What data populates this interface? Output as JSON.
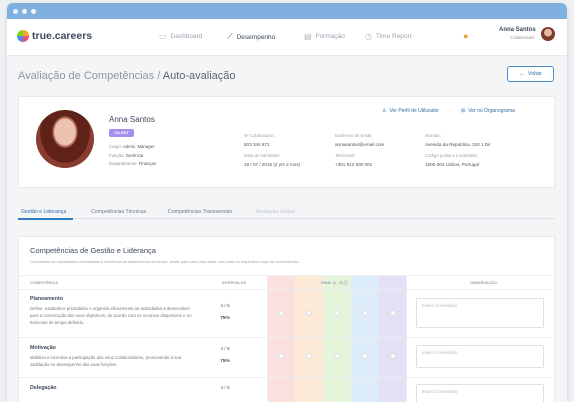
{
  "window": {
    "dots": 3
  },
  "nav": {
    "logo": "true.careers",
    "items": [
      {
        "label": "Dashboard",
        "icon": "monitor-icon",
        "active": false
      },
      {
        "label": "Desempenho",
        "icon": "chart-line-icon",
        "active": true
      },
      {
        "label": "Formação",
        "icon": "book-icon",
        "active": false
      },
      {
        "label": "Time Report",
        "icon": "clock-icon",
        "active": false
      }
    ],
    "user": {
      "name": "Anna Santos",
      "role": "Colaborador"
    }
  },
  "page": {
    "title": "Avaliação de Competências /",
    "subtitle": "Auto-avaliação",
    "back_label": "Voltar"
  },
  "profile": {
    "name": "Anna Santos",
    "badge": "TALENT",
    "links": {
      "profile": "Ver Perfil de Utilizador",
      "org": "Ver no Organograma"
    },
    "details": [
      {
        "label": "Cargo:",
        "value": "Admin. Manager"
      },
      {
        "label": "Função:",
        "value": "Gerência"
      },
      {
        "label": "Departamento:",
        "value": "Finanças"
      }
    ],
    "fields": {
      "num_label": "Nº Colaborador:",
      "num": "503 344 872",
      "adm_label": "Data de Admissão:",
      "adm": "18 / 07 / 2016  (2 yrs 2 mos)",
      "email_label": "Endereço de Email:",
      "email": "annasantos@email.com",
      "phone_label": "Telemóvel:",
      "phone": "+351 912 000 001",
      "addr_label": "Morada:",
      "addr": "Avenida da Republica, 324 1 Dir",
      "zip_label": "Código postal e Localidade:",
      "zip": "1600-204 Lisboa, Portugal"
    }
  },
  "tabs": [
    {
      "label": "Gestão e Liderança",
      "state": "active"
    },
    {
      "label": "Competências Técnicas",
      "state": "normal"
    },
    {
      "label": "Competências Transversais",
      "state": "normal"
    },
    {
      "label": "Avaliação Global",
      "state": "disabled"
    }
  ],
  "section": {
    "title": "Competências de Gestão e Liderança",
    "description": "Considerem-se capacidades necessárias à excelência do desempenho da função, avalie para cada uma delas, com base no respectivo mapa de competências.",
    "columns": {
      "competence": "COMPETÊNCIA",
      "intervals": "INTERVALOS",
      "pnml": "PNML (1 - 5)",
      "observation": "OBSERVAÇÃO"
    },
    "comment_placeholder": "Inserir Comentário",
    "rainbow_colors": [
      "#fbe0e0",
      "#fdebd7",
      "#e4f5dc",
      "#dcedf9",
      "#e6e0f6"
    ],
    "rows": [
      {
        "title": "Planeamento",
        "description": "Define, estabelece prioridades e organiza eficazmente as actividades a desenvolver para a consecução dos seus objectivos, de acordo com os recursos disponíveis e no horizonte de tempo definido.",
        "score": "4 / 5",
        "percent": "75%"
      },
      {
        "title": "Motivação",
        "description": "Mobiliza e incentiva a participação dos seus Colaboradores, promovendo a sua satisfação no desempenho das suas funções.",
        "score": "4 / 5",
        "percent": "75%"
      },
      {
        "title": "Delegação",
        "description": "",
        "score": "4 / 5",
        "percent": ""
      }
    ]
  }
}
